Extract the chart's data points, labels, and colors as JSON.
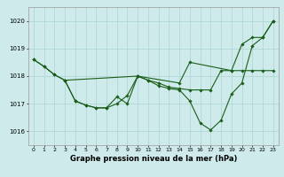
{
  "bg_color": "#ceeaea",
  "grid_color": "#b0d8d8",
  "line_color": "#1a5e1a",
  "marker_color": "#1a5e1a",
  "title": "Graphe pression niveau de la mer (hPa)",
  "ylim": [
    1015.5,
    1020.5
  ],
  "yticks": [
    1016,
    1017,
    1018,
    1019,
    1020
  ],
  "xlim": [
    -0.5,
    23.5
  ],
  "xticks": [
    0,
    1,
    2,
    3,
    4,
    5,
    6,
    7,
    8,
    9,
    10,
    11,
    12,
    13,
    14,
    15,
    16,
    17,
    18,
    19,
    20,
    21,
    22,
    23
  ],
  "series1_x": [
    0,
    1,
    2,
    3,
    4,
    5,
    6,
    7,
    8,
    9,
    10,
    11,
    12,
    13,
    14,
    15,
    16,
    17,
    18,
    19,
    20,
    21,
    22,
    23
  ],
  "series1_y": [
    1018.6,
    1018.35,
    1018.05,
    1017.85,
    1017.1,
    1016.95,
    1016.85,
    1016.85,
    1017.0,
    1017.3,
    1018.0,
    1017.85,
    1017.75,
    1017.6,
    1017.55,
    1017.5,
    1017.5,
    1017.5,
    1018.2,
    1018.2,
    1018.2,
    1018.2,
    1018.2,
    1018.2
  ],
  "series2_x": [
    0,
    1,
    2,
    3,
    4,
    5,
    6,
    7,
    8,
    9,
    10,
    11,
    12,
    13,
    14,
    15,
    16,
    17,
    18,
    19,
    20,
    21,
    22,
    23
  ],
  "series2_y": [
    1018.6,
    1018.35,
    1018.05,
    1017.85,
    1017.1,
    1016.95,
    1016.85,
    1016.85,
    1017.25,
    1017.0,
    1018.0,
    1017.85,
    1017.65,
    1017.55,
    1017.5,
    1017.1,
    1016.3,
    1016.05,
    1016.4,
    1017.35,
    1017.75,
    1019.1,
    1019.4,
    1020.0
  ],
  "series3_x": [
    3,
    10,
    14,
    15,
    19,
    20,
    21,
    22,
    23
  ],
  "series3_y": [
    1017.85,
    1018.0,
    1017.75,
    1018.5,
    1018.2,
    1019.15,
    1019.4,
    1019.4,
    1020.0
  ]
}
